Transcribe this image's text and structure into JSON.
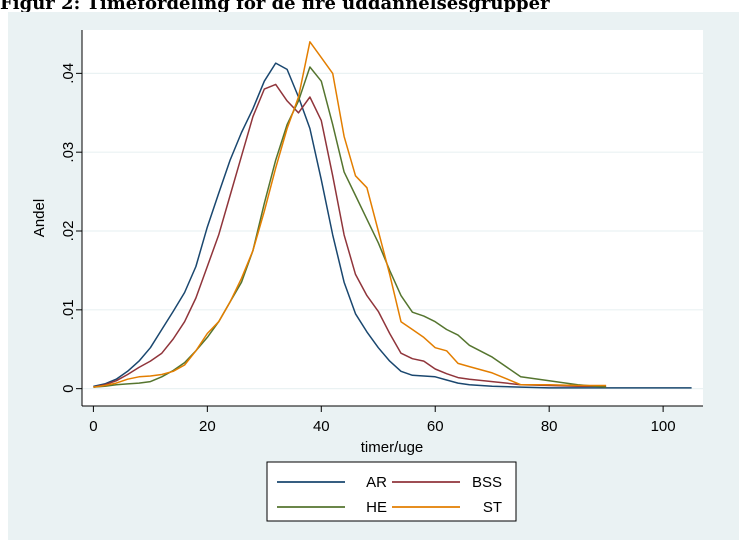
{
  "figure_title": "Figur 2: Timefordeling for de fire uddannelsesgrupper",
  "colors": {
    "panel_bg": "#eaf2f3",
    "plot_bg": "#ffffff",
    "AR": "#1a476f",
    "BSS": "#90353b",
    "HE": "#55752f",
    "ST": "#e37e00"
  },
  "chart_data": {
    "type": "line",
    "title": "",
    "xlabel": "timer/uge",
    "ylabel": "Andel",
    "xlim": [
      -2,
      107
    ],
    "ylim": [
      -0.0022,
      0.0455
    ],
    "xticks": [
      0,
      20,
      40,
      60,
      80,
      100
    ],
    "xtick_labels": [
      "0",
      "20",
      "40",
      "60",
      "80",
      "100"
    ],
    "yticks": [
      0,
      0.01,
      0.02,
      0.03,
      0.04
    ],
    "ytick_labels": [
      "0",
      ".01",
      ".02",
      ".03",
      ".04"
    ],
    "grid": true,
    "legend_position": "bottom",
    "series": [
      {
        "name": "AR",
        "color": "#1a476f",
        "x": [
          0,
          2,
          4,
          6,
          8,
          10,
          12,
          14,
          16,
          18,
          20,
          22,
          24,
          26,
          28,
          30,
          32,
          34,
          36,
          38,
          40,
          42,
          44,
          46,
          48,
          50,
          52,
          54,
          56,
          58,
          60,
          62,
          64,
          66,
          70,
          75,
          80,
          85,
          90,
          95,
          100,
          105
        ],
        "y": [
          0.0003,
          0.0006,
          0.0012,
          0.0022,
          0.0035,
          0.0052,
          0.0075,
          0.0098,
          0.0122,
          0.0155,
          0.0205,
          0.0248,
          0.029,
          0.0325,
          0.0355,
          0.039,
          0.0413,
          0.0405,
          0.037,
          0.033,
          0.0265,
          0.0195,
          0.0135,
          0.0095,
          0.0072,
          0.0052,
          0.0035,
          0.0022,
          0.0017,
          0.0016,
          0.0015,
          0.0011,
          0.0007,
          0.0005,
          0.0003,
          0.0002,
          0.0001,
          0.0001,
          0.0001,
          0.0001,
          0.0001,
          0.0001
        ]
      },
      {
        "name": "BSS",
        "color": "#90353b",
        "x": [
          0,
          2,
          4,
          6,
          8,
          10,
          12,
          14,
          16,
          18,
          20,
          22,
          24,
          26,
          28,
          30,
          32,
          34,
          36,
          38,
          40,
          42,
          44,
          46,
          48,
          50,
          52,
          54,
          56,
          58,
          60,
          62,
          64,
          66,
          70,
          75,
          80,
          85,
          90
        ],
        "y": [
          0.0002,
          0.0005,
          0.001,
          0.0018,
          0.0027,
          0.0035,
          0.0045,
          0.0063,
          0.0085,
          0.0115,
          0.0155,
          0.0195,
          0.0245,
          0.0295,
          0.0345,
          0.038,
          0.0386,
          0.0365,
          0.035,
          0.037,
          0.034,
          0.027,
          0.0195,
          0.0145,
          0.0118,
          0.0098,
          0.007,
          0.0045,
          0.0038,
          0.0035,
          0.0025,
          0.0019,
          0.0014,
          0.0012,
          0.0009,
          0.0005,
          0.0004,
          0.0003,
          0.0003
        ]
      },
      {
        "name": "HE",
        "color": "#55752f",
        "x": [
          0,
          2,
          4,
          6,
          8,
          10,
          12,
          14,
          16,
          18,
          20,
          22,
          24,
          26,
          28,
          30,
          32,
          34,
          36,
          38,
          40,
          42,
          44,
          46,
          48,
          50,
          52,
          54,
          56,
          58,
          60,
          62,
          64,
          66,
          70,
          75,
          80,
          85,
          90
        ],
        "y": [
          0.0002,
          0.0003,
          0.0005,
          0.0006,
          0.0007,
          0.0009,
          0.0015,
          0.0023,
          0.0033,
          0.0048,
          0.0065,
          0.0085,
          0.011,
          0.0135,
          0.0175,
          0.0235,
          0.029,
          0.0335,
          0.0365,
          0.0408,
          0.039,
          0.0335,
          0.0275,
          0.0245,
          0.0215,
          0.0185,
          0.015,
          0.0118,
          0.0097,
          0.0092,
          0.0085,
          0.0075,
          0.0068,
          0.0055,
          0.004,
          0.0015,
          0.001,
          0.0005,
          0.0002
        ]
      },
      {
        "name": "ST",
        "color": "#e37e00",
        "x": [
          0,
          2,
          4,
          6,
          8,
          10,
          12,
          14,
          16,
          18,
          20,
          22,
          24,
          26,
          28,
          30,
          32,
          34,
          36,
          38,
          40,
          42,
          44,
          46,
          48,
          50,
          52,
          54,
          56,
          58,
          60,
          62,
          64,
          66,
          70,
          75,
          80,
          85,
          90
        ],
        "y": [
          0.0002,
          0.0004,
          0.0007,
          0.0012,
          0.0015,
          0.0016,
          0.0018,
          0.0022,
          0.003,
          0.0048,
          0.007,
          0.0085,
          0.011,
          0.014,
          0.0175,
          0.0225,
          0.028,
          0.033,
          0.037,
          0.044,
          0.042,
          0.04,
          0.032,
          0.027,
          0.0255,
          0.02,
          0.0145,
          0.0085,
          0.0075,
          0.0065,
          0.0052,
          0.0048,
          0.0032,
          0.0028,
          0.002,
          0.0005,
          0.0005,
          0.0004,
          0.0004
        ]
      }
    ]
  }
}
